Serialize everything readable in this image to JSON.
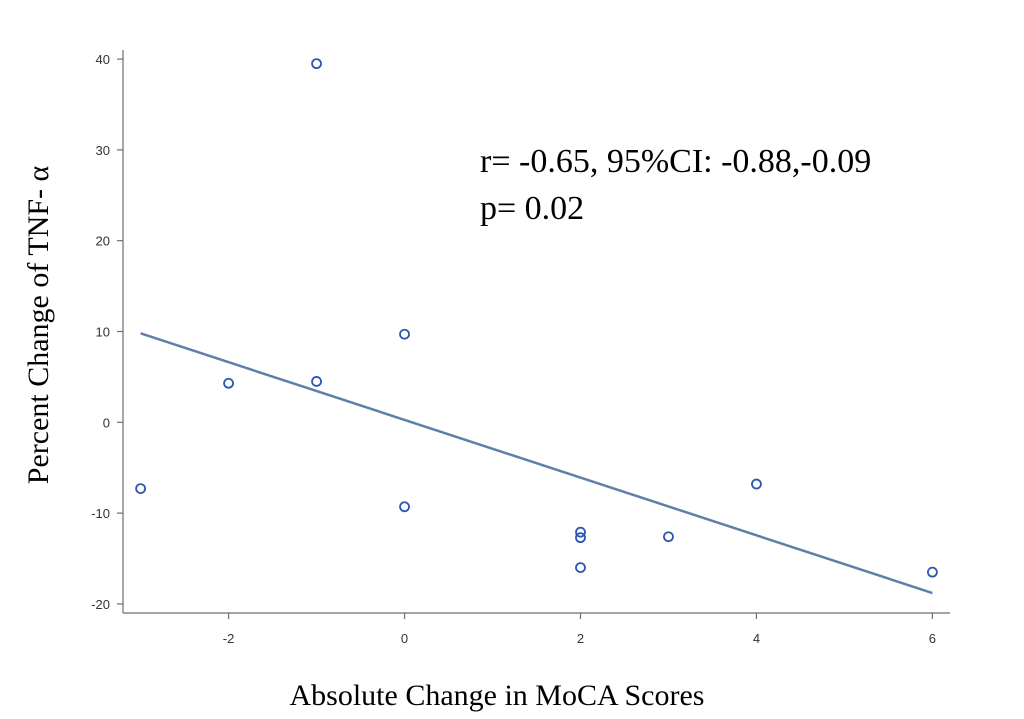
{
  "chart_data": {
    "type": "scatter",
    "title": "",
    "xlabel": "Absolute Change in MoCA Scores",
    "ylabel": "Percent Change of TNF- α",
    "xlim": [
      -3.2,
      6.2
    ],
    "ylim": [
      -21,
      41
    ],
    "xticks": [
      -2,
      0,
      2,
      4,
      6
    ],
    "yticks": [
      -20,
      -10,
      0,
      10,
      20,
      30,
      40
    ],
    "xtick_labels": [
      "-2",
      "0",
      "2",
      "4",
      "6"
    ],
    "ytick_labels": [
      "-20",
      "-10",
      "0",
      "10",
      "20",
      "30",
      "40"
    ],
    "grid": false,
    "points": [
      {
        "x": -3,
        "y": -7.3
      },
      {
        "x": -2,
        "y": 4.3
      },
      {
        "x": -1,
        "y": 39.5
      },
      {
        "x": -1,
        "y": 4.5
      },
      {
        "x": 0,
        "y": 9.7
      },
      {
        "x": 0,
        "y": -9.3
      },
      {
        "x": 2,
        "y": -12.1
      },
      {
        "x": 2,
        "y": -12.7
      },
      {
        "x": 2,
        "y": -16.0
      },
      {
        "x": 3,
        "y": -12.6
      },
      {
        "x": 4,
        "y": -6.8
      },
      {
        "x": 6,
        "y": -16.5
      }
    ],
    "fit_line": {
      "x": [
        -3,
        6
      ],
      "y": [
        9.8,
        -18.8
      ]
    },
    "annotation": [
      "r= -0.65, 95%CI: -0.88,-0.09",
      "p= 0.02"
    ],
    "colors": {
      "marker": "#2e55b3",
      "fit_line": "#5f7fa8",
      "axis": "#6e6e6e"
    }
  }
}
